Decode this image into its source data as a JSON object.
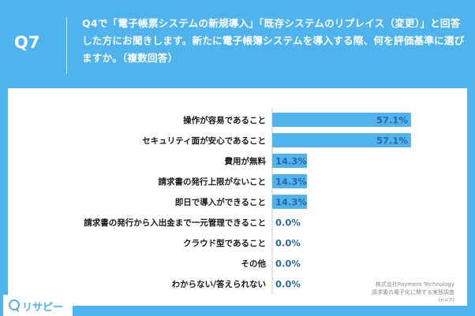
{
  "header": {
    "question_number": "Q7",
    "question_text": "Q4で「電子帳票システムの新規導入」「既存システムのリプレイス（変更）」と回答した方にお聞きします。新たに電子帳簿システムを導入する際、何を評価基準に選びますか。（複数回答）"
  },
  "source": {
    "company": "株式会社Payment Technology",
    "survey": "請求書の電子化に関する実態調査",
    "sample": "(n=7)"
  },
  "logo": {
    "text": "リサピー",
    "icon": "search-icon"
  },
  "colors": {
    "bar": "#4fb3ee",
    "frame": "#4fb3ee",
    "label": "#1a1a1a",
    "value": "#2a6aa0"
  },
  "chart_data": {
    "type": "bar",
    "orientation": "horizontal",
    "categories": [
      "操作が容易であること",
      "セキュリティ面が安心であること",
      "費用が無料",
      "請求書の発行上限がないこと",
      "即日で導入ができること",
      "請求書の発行から入出金まで一元管理できること",
      "クラウド型であること",
      "その他",
      "わからない/答えられない"
    ],
    "values": [
      57.1,
      57.1,
      14.3,
      14.3,
      14.3,
      0.0,
      0.0,
      0.0,
      0.0
    ],
    "value_labels": [
      "57.1%",
      "57.1%",
      "14.3%",
      "14.3%",
      "14.3%",
      "0.0%",
      "0.0%",
      "0.0%",
      "0.0%"
    ],
    "unit": "%",
    "xlim": [
      0,
      100
    ],
    "title": "",
    "xlabel": "",
    "ylabel": ""
  }
}
